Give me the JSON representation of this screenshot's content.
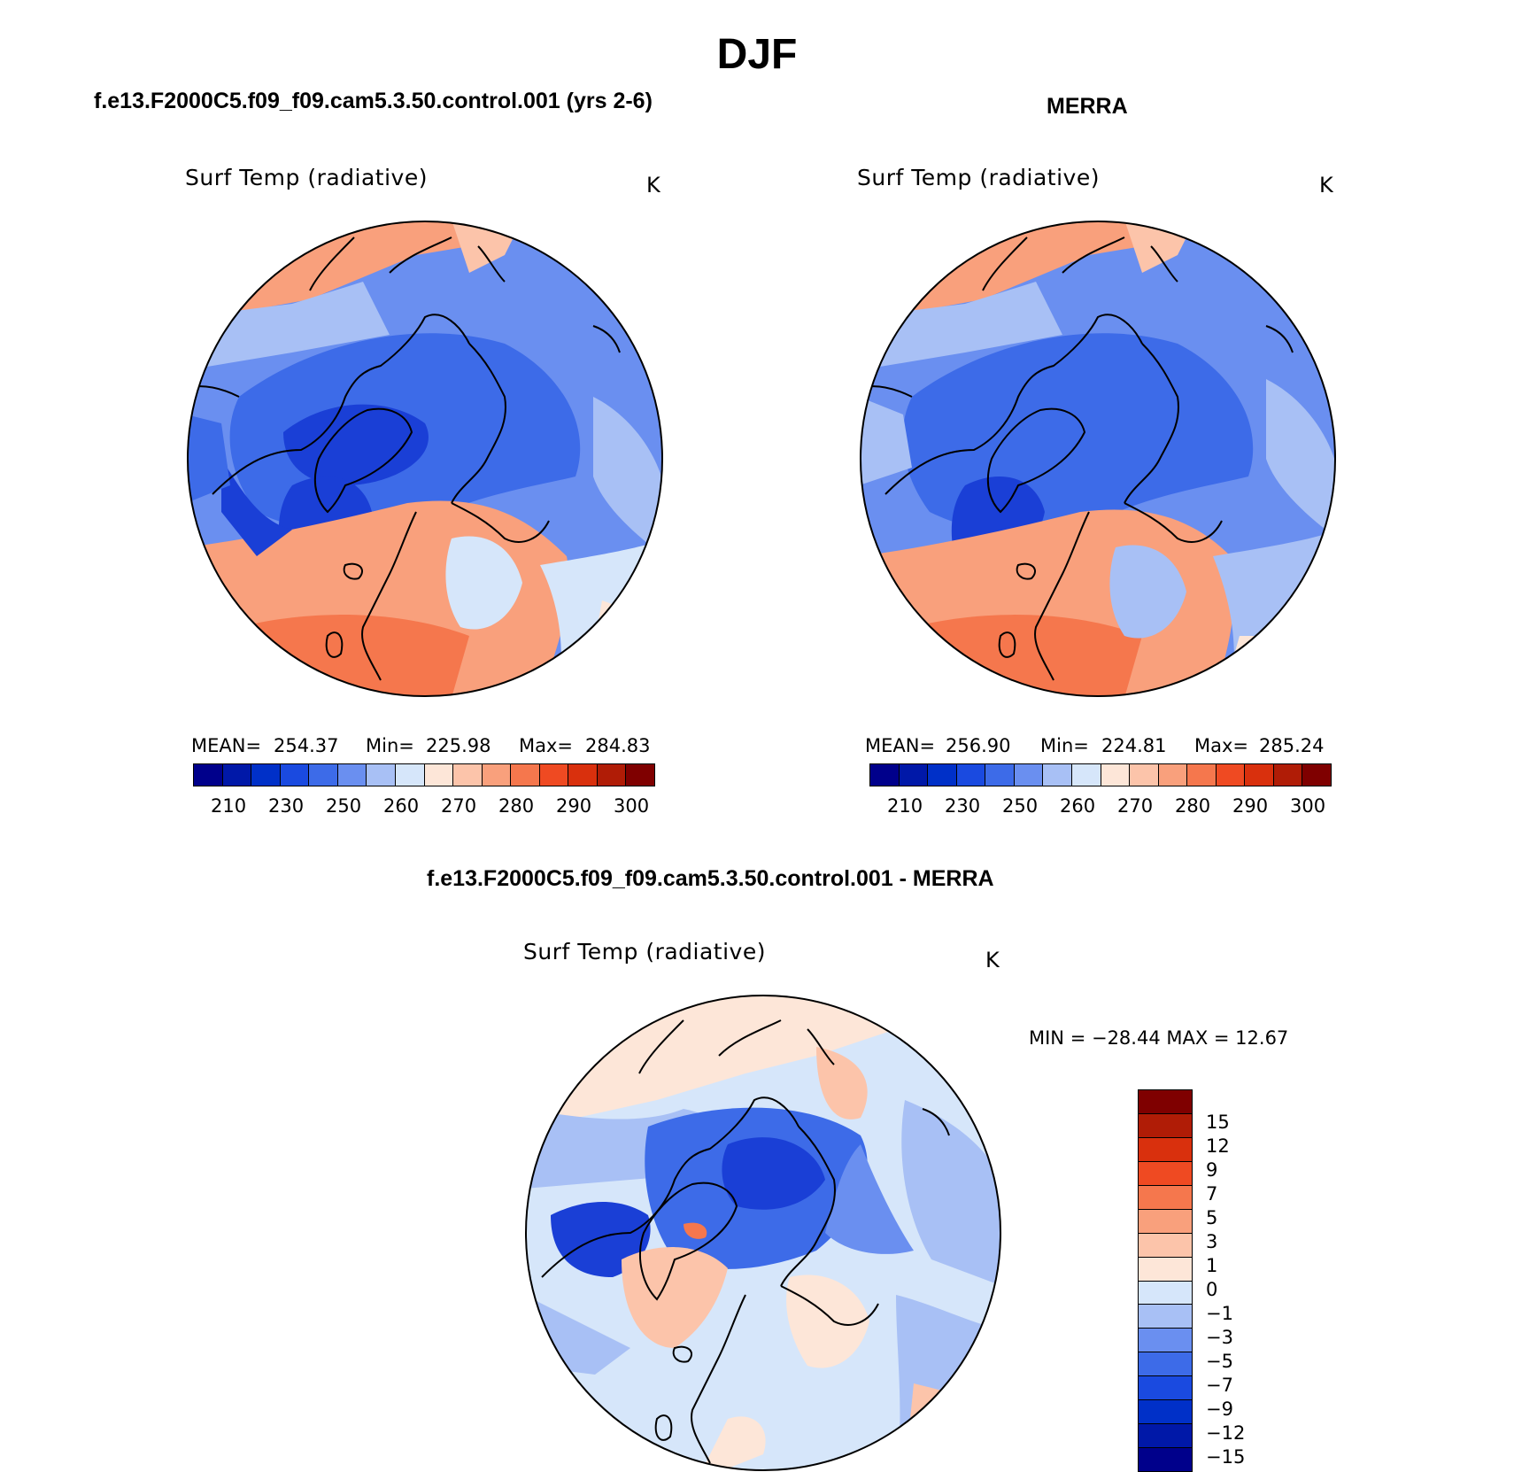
{
  "page": {
    "title": "DJF"
  },
  "panels": [
    {
      "id": "model",
      "case_title": "f.e13.F2000C5.f09_f09.cam5.3.50.control.001 (yrs 2-6)",
      "label": "Surf Temp (radiative)",
      "units": "K",
      "stats": {
        "mean_label": "MEAN=",
        "mean": "254.37",
        "min_label": "Min=",
        "min": "225.98",
        "max_label": "Max=",
        "max": "284.83"
      }
    },
    {
      "id": "obs",
      "case_title": "MERRA",
      "label": "Surf Temp (radiative)",
      "units": "K",
      "stats": {
        "mean_label": "MEAN=",
        "mean": "256.90",
        "min_label": "Min=",
        "min": "224.81",
        "max_label": "Max=",
        "max": "285.24"
      }
    },
    {
      "id": "diff",
      "case_title": "f.e13.F2000C5.f09_f09.cam5.3.50.control.001 - MERRA",
      "label": "Surf Temp (radiative)",
      "units": "K",
      "stats_text": "MIN = −28.44 MAX =   12.67"
    }
  ],
  "colorbars": {
    "absolute": {
      "colors": [
        "#00008b",
        "#0018a8",
        "#0030c8",
        "#1a4ae0",
        "#3d6be8",
        "#6a8ff0",
        "#a8c0f5",
        "#d6e6fa",
        "#fde6d8",
        "#fcc4aa",
        "#f9a07c",
        "#f5774d",
        "#ef4a22",
        "#d9300d",
        "#b01c06",
        "#7f0000"
      ],
      "ticks": [
        "210",
        "230",
        "250",
        "260",
        "270",
        "280",
        "290",
        "300"
      ]
    },
    "difference": {
      "colors": [
        "#7f0000",
        "#b01c06",
        "#d9300d",
        "#ef4a22",
        "#f5774d",
        "#f9a07c",
        "#fcc4aa",
        "#fde6d8",
        "#d6e6fa",
        "#a8c0f5",
        "#6a8ff0",
        "#3d6be8",
        "#1a4ae0",
        "#0030c8",
        "#0018a8",
        "#00008b"
      ],
      "ticks": [
        "15",
        "12",
        "9",
        "7",
        "5",
        "3",
        "1",
        "0",
        "−1",
        "−3",
        "−5",
        "−7",
        "−9",
        "−12",
        "−15"
      ]
    }
  },
  "map_colors": {
    "deep": "#1a3fd6",
    "mid": "#3d6be8",
    "light": "#6a8ff0",
    "pale": "#a8c0f5",
    "palest": "#d6e6fa",
    "warm1": "#fde6d8",
    "warm2": "#fcc4aa",
    "warm3": "#f9a07c",
    "warm4": "#f5774d"
  }
}
